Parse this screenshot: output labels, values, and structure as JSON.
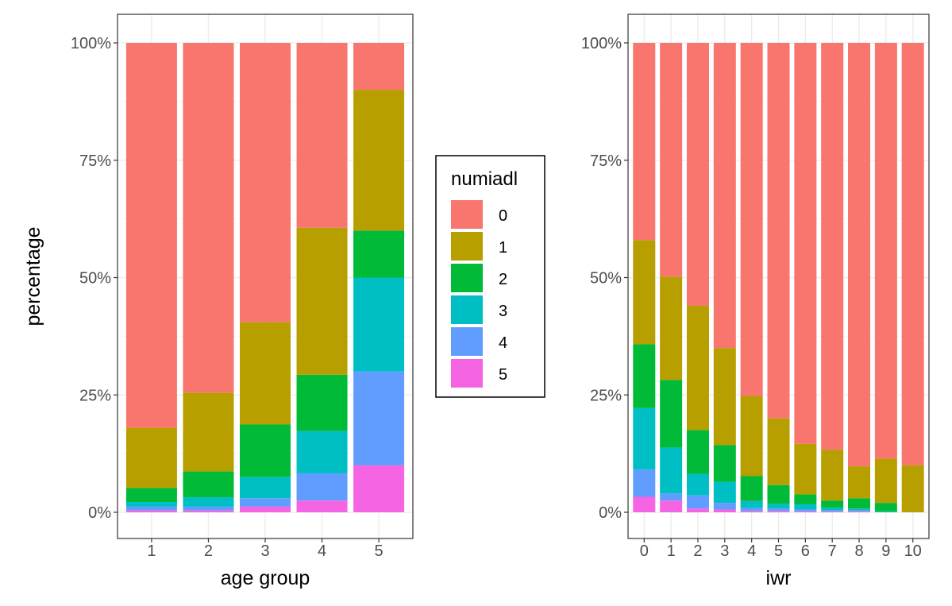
{
  "chart_data": [
    {
      "type": "bar",
      "stacked": true,
      "normalized": true,
      "xlabel": "age group",
      "ylabel": "percentage",
      "categories": [
        "1",
        "2",
        "3",
        "4",
        "5"
      ],
      "yticks": [
        "0%",
        "25%",
        "50%",
        "75%",
        "100%"
      ],
      "ylim": [
        0,
        1
      ],
      "grid": true,
      "series": [
        {
          "name": "5",
          "values": [
            0.004,
            0.004,
            0.012,
            0.025,
            0.1
          ]
        },
        {
          "name": "4",
          "values": [
            0.008,
            0.008,
            0.018,
            0.058,
            0.2
          ]
        },
        {
          "name": "3",
          "values": [
            0.01,
            0.02,
            0.045,
            0.09,
            0.2
          ]
        },
        {
          "name": "2",
          "values": [
            0.03,
            0.055,
            0.112,
            0.12,
            0.1
          ]
        },
        {
          "name": "1",
          "values": [
            0.128,
            0.168,
            0.218,
            0.313,
            0.3
          ]
        },
        {
          "name": "0",
          "values": [
            0.82,
            0.745,
            0.595,
            0.394,
            0.1
          ]
        }
      ]
    },
    {
      "type": "bar",
      "stacked": true,
      "normalized": true,
      "xlabel": "iwr",
      "ylabel": "",
      "categories": [
        "0",
        "1",
        "2",
        "3",
        "4",
        "5",
        "6",
        "7",
        "8",
        "9",
        "10"
      ],
      "yticks": [
        "0%",
        "25%",
        "50%",
        "75%",
        "100%"
      ],
      "ylim": [
        0,
        1
      ],
      "grid": true,
      "series": [
        {
          "name": "5",
          "values": [
            0.033,
            0.025,
            0.008,
            0.006,
            0.003,
            0.003,
            0.002,
            0.002,
            0.002,
            0,
            0
          ]
        },
        {
          "name": "4",
          "values": [
            0.058,
            0.015,
            0.028,
            0.014,
            0.006,
            0.005,
            0.004,
            0.002,
            0.002,
            0,
            0
          ]
        },
        {
          "name": "3",
          "values": [
            0.131,
            0.098,
            0.046,
            0.045,
            0.015,
            0.01,
            0.011,
            0.006,
            0.004,
            0.002,
            0
          ]
        },
        {
          "name": "2",
          "values": [
            0.136,
            0.144,
            0.093,
            0.078,
            0.053,
            0.04,
            0.021,
            0.015,
            0.022,
            0.018,
            0
          ]
        },
        {
          "name": "1",
          "values": [
            0.222,
            0.22,
            0.265,
            0.207,
            0.171,
            0.142,
            0.108,
            0.108,
            0.068,
            0.094,
            0.1
          ]
        },
        {
          "name": "0",
          "values": [
            0.42,
            0.498,
            0.56,
            0.65,
            0.752,
            0.8,
            0.854,
            0.867,
            0.902,
            0.886,
            0.9
          ]
        }
      ]
    }
  ],
  "legend": {
    "title": "numiadl",
    "items": [
      {
        "label": "0",
        "color": "#F8766D"
      },
      {
        "label": "1",
        "color": "#B79F00"
      },
      {
        "label": "2",
        "color": "#00BA38"
      },
      {
        "label": "3",
        "color": "#00BFC4"
      },
      {
        "label": "4",
        "color": "#619CFF"
      },
      {
        "label": "5",
        "color": "#F564E3"
      }
    ]
  },
  "colors": {
    "panel_border": "#333333",
    "grid_major": "#ebebeb",
    "grid_minor": "#f5f5f5",
    "tick_text": "#4d4d4d"
  }
}
